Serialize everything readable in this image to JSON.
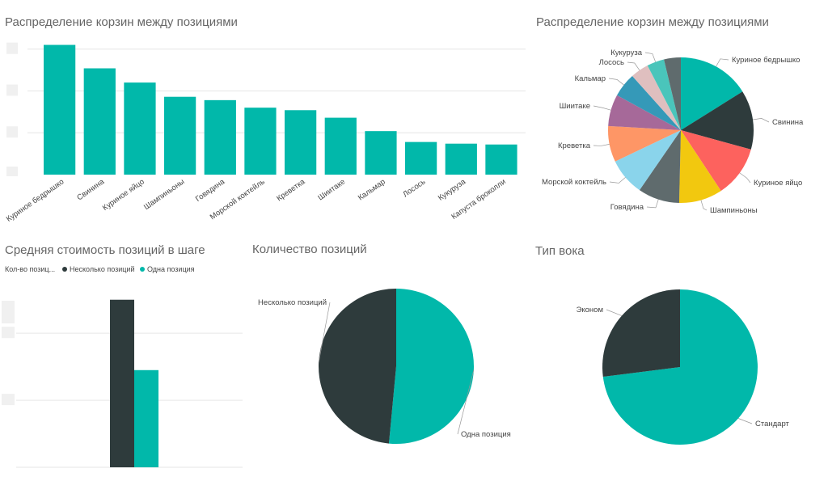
{
  "colors": {
    "teal": "#01B8AA",
    "dark": "#2E3B3C",
    "red": "#FD625E",
    "yellow": "#F2C80F",
    "gray": "#5F6B6D",
    "sky": "#8AD4EB",
    "orange": "#FE9666",
    "purple": "#A66999",
    "blue": "#3599B8",
    "pink": "#DFBFBF",
    "aqua": "#4AC5BB",
    "darkgray": "#5F6B6D"
  },
  "chart_data": [
    {
      "id": "bar_top",
      "type": "bar",
      "title": "Распределение корзин между позициями",
      "categories": [
        "Куриное бедрышко",
        "Свинина",
        "Куриное яйцо",
        "Шампиньоны",
        "Говядина",
        "Морской коктейль",
        "Креветка",
        "Шиитаке",
        "Кальмар",
        "Лосось",
        "Кукуруза",
        "Капуста броколли"
      ],
      "values": [
        155,
        127,
        110,
        93,
        89,
        80,
        77,
        68,
        52,
        39,
        37,
        36
      ],
      "ylim": [
        0,
        170
      ],
      "grid": true
    },
    {
      "id": "pie_top",
      "type": "pie",
      "title": "Распределение корзин между позициями",
      "labels": [
        "Куриное бедрышко",
        "Свинина",
        "Куриное яйцо",
        "Шампиньоны",
        "Говядина",
        "Морской коктейль",
        "Креветка",
        "Шиитаке",
        "Кальмар",
        "Лосось",
        "Кукуруза",
        ""
      ],
      "values": [
        155,
        127,
        110,
        93,
        89,
        80,
        77,
        68,
        52,
        39,
        37,
        36
      ],
      "colors": [
        "#01B8AA",
        "#2E3B3C",
        "#FD625E",
        "#F2C80F",
        "#5F6B6D",
        "#8AD4EB",
        "#FE9666",
        "#A66999",
        "#3599B8",
        "#DFBFBF",
        "#4AC5BB",
        "#5F6B6D"
      ]
    },
    {
      "id": "bar_bottom",
      "type": "bar",
      "title": "Средняя стоимость позиций в шаге",
      "legend_title": "Кол-во позиц...",
      "series": [
        {
          "name": "Несколько позиций",
          "values": [
            100
          ]
        },
        {
          "name": "Одна позиция",
          "values": [
            58
          ]
        }
      ],
      "ylim": [
        0,
        110
      ],
      "grid": true
    },
    {
      "id": "pie_count",
      "type": "pie",
      "title": "Количество позиций",
      "labels": [
        "Одна позиция",
        "Несколько позиций"
      ],
      "values": [
        51.5,
        48.5
      ],
      "colors": [
        "#01B8AA",
        "#2E3B3C"
      ]
    },
    {
      "id": "pie_wok",
      "type": "pie",
      "title": "Тип вока",
      "labels": [
        "Стандарт",
        "Эконом"
      ],
      "values": [
        73,
        27
      ],
      "colors": [
        "#01B8AA",
        "#2E3B3C"
      ]
    }
  ]
}
